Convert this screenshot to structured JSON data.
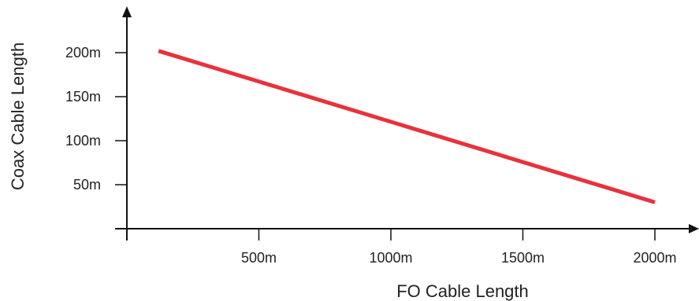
{
  "chart_data": {
    "type": "line",
    "title": "",
    "xlabel": "FO Cable Length",
    "ylabel": "Coax Cable Length",
    "x_ticks": [
      {
        "value": 500,
        "label": "500m"
      },
      {
        "value": 1000,
        "label": "1000m"
      },
      {
        "value": 1500,
        "label": "1500m"
      },
      {
        "value": 2000,
        "label": "2000m"
      }
    ],
    "y_ticks": [
      {
        "value": 50,
        "label": "50m"
      },
      {
        "value": 100,
        "label": "100m"
      },
      {
        "value": 150,
        "label": "150m"
      },
      {
        "value": 200,
        "label": "200m"
      }
    ],
    "xlim": [
      0,
      2150
    ],
    "ylim": [
      0,
      255
    ],
    "grid": false,
    "legend": "none",
    "series": [
      {
        "color": "#e8323c",
        "x": [
          120,
          2000
        ],
        "y": [
          202,
          30
        ]
      }
    ],
    "axis_color": "#111111"
  }
}
